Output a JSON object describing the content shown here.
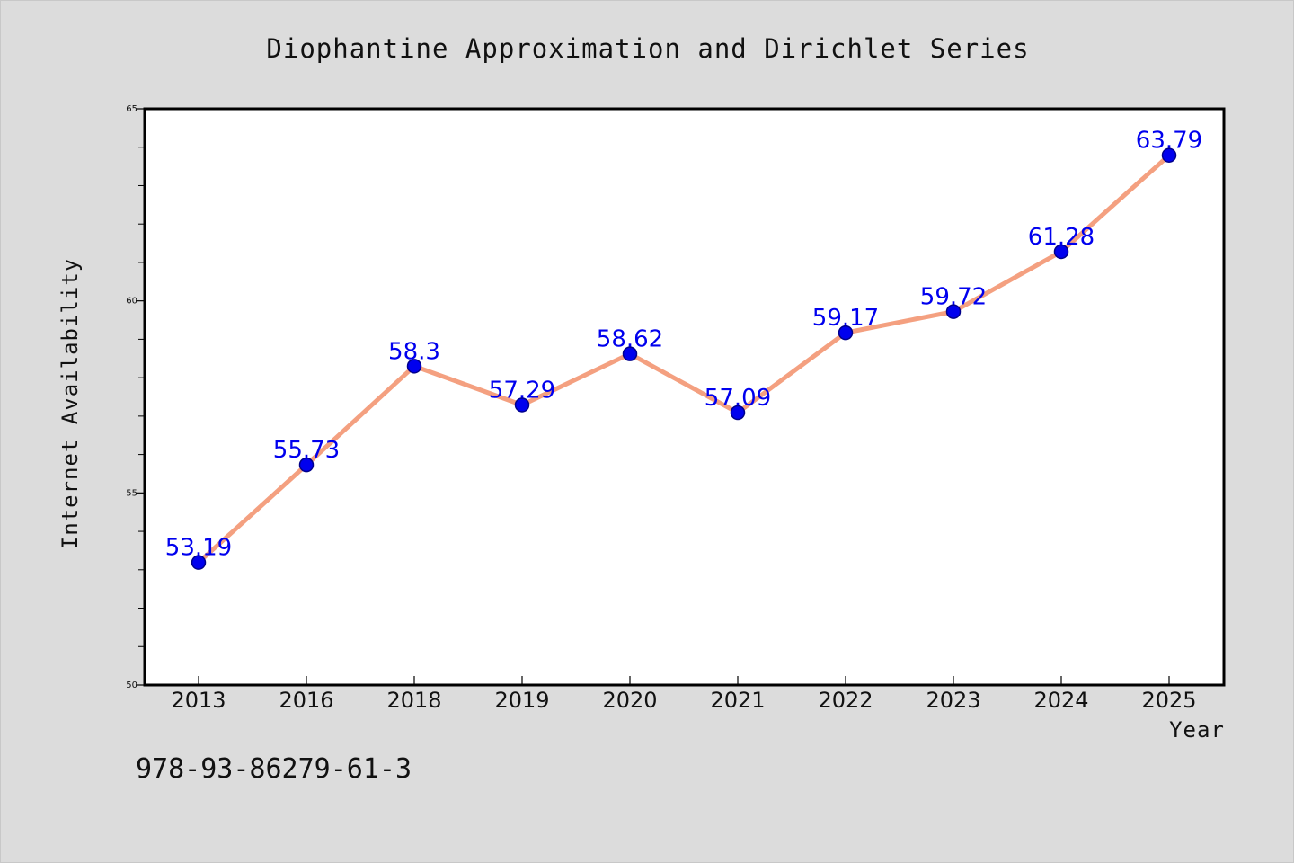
{
  "chart_data": {
    "type": "line",
    "title": "Diophantine Approximation and Dirichlet Series",
    "xlabel": "Year",
    "ylabel": "Internet Availability",
    "categories": [
      "2013",
      "2016",
      "2018",
      "2019",
      "2020",
      "2021",
      "2022",
      "2023",
      "2024",
      "2025"
    ],
    "series": [
      {
        "values": [
          53.19,
          55.73,
          58.3,
          57.29,
          58.62,
          57.09,
          59.17,
          59.72,
          61.28,
          63.79
        ],
        "data_labels": [
          "53.19",
          "55.73",
          "58.3",
          "57.29",
          "58.62",
          "57.09",
          "59.17",
          "59.72",
          "61.28",
          "63.79"
        ]
      }
    ],
    "ylim": [
      50,
      65
    ],
    "yticks": [
      50,
      55,
      60,
      65
    ],
    "ytick_labels": [
      "50",
      "55",
      "60",
      "65"
    ],
    "y_minor_step": 1,
    "grid": false,
    "legend": "none",
    "colors": {
      "line": "#f4a080",
      "marker": "#0000ee",
      "marker_edge": "#00008b",
      "data_label": "#0000ee",
      "plot_background": "#ffffff",
      "page_background": "#dcdcdc"
    }
  },
  "footer": {
    "isbn": "978-93-86279-61-3"
  }
}
